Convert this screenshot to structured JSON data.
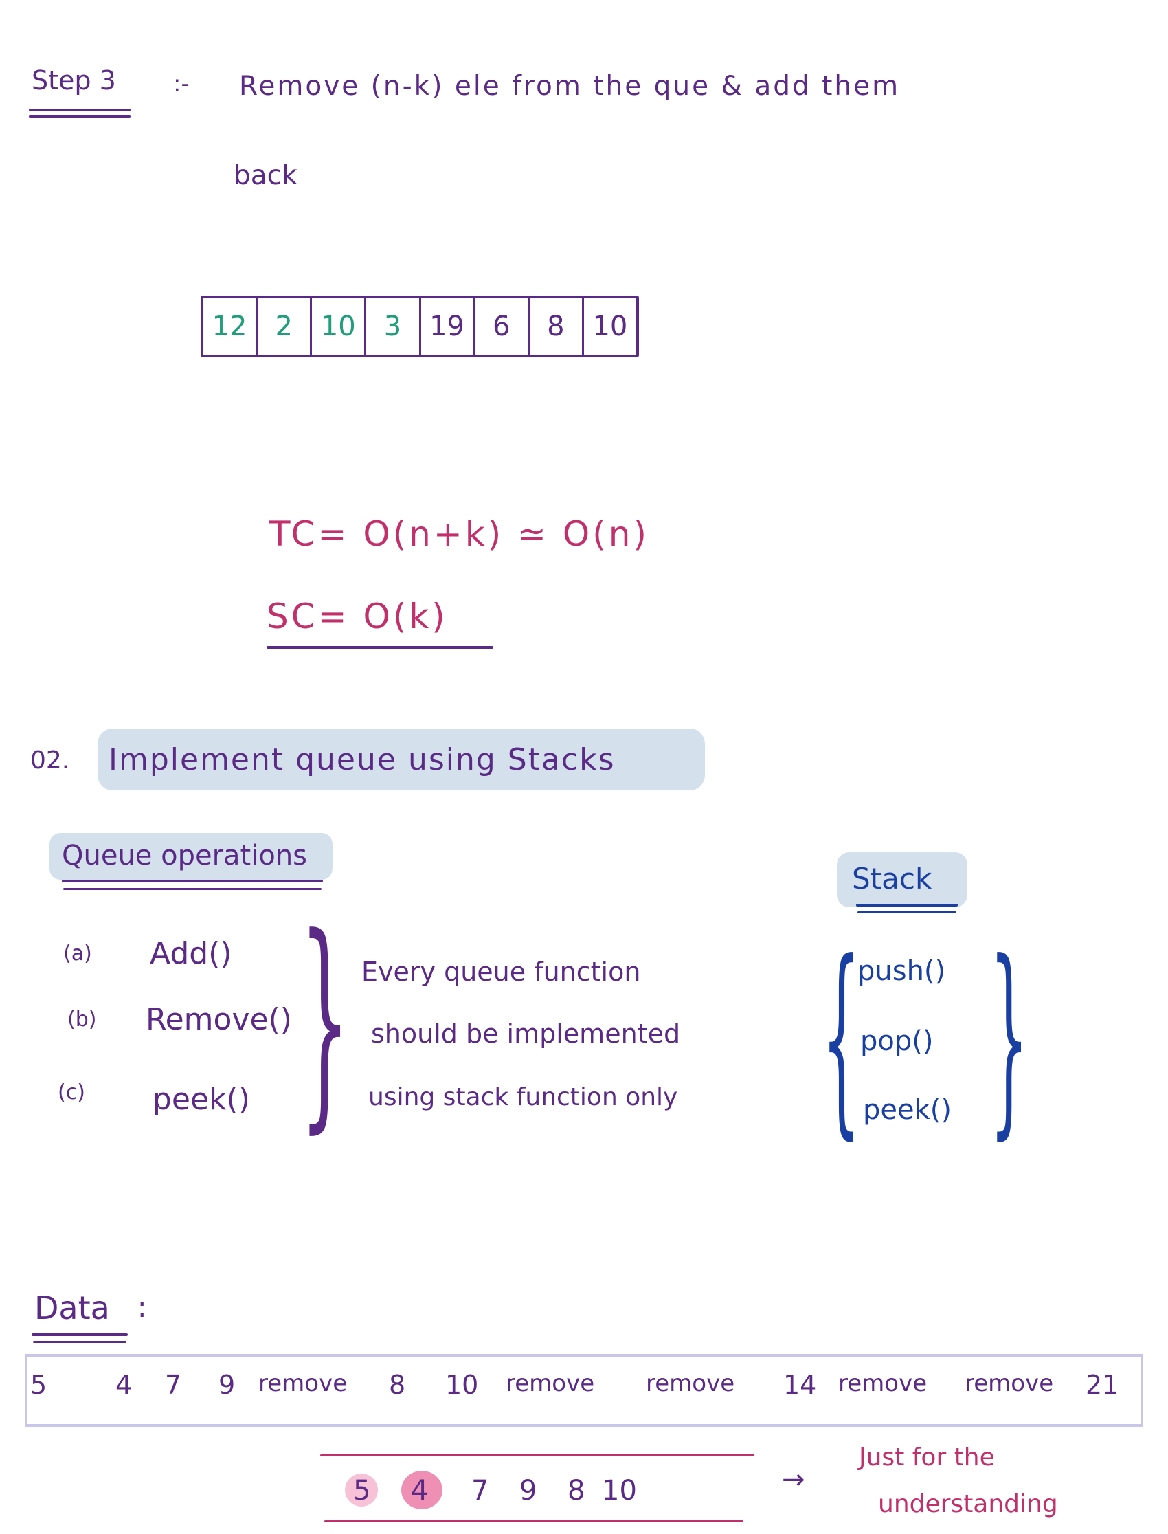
{
  "step3": {
    "label": "Step 3",
    "sep": ":-",
    "line1": "Remove (n-k) ele from the que & add them",
    "line2": "back"
  },
  "array": {
    "cells": [
      {
        "value": "12",
        "color": "#1f9e7a"
      },
      {
        "value": "2",
        "color": "#1f9e7a"
      },
      {
        "value": "10",
        "color": "#1f9e7a"
      },
      {
        "value": "3",
        "color": "#1f9e7a"
      },
      {
        "value": "19",
        "color": "#5b2a86"
      },
      {
        "value": "6",
        "color": "#5b2a86"
      },
      {
        "value": "8",
        "color": "#5b2a86"
      },
      {
        "value": "10",
        "color": "#5b2a86"
      }
    ]
  },
  "complexity": {
    "tc": "TC= O(n+k) ≃ O(n)",
    "sc": "SC= O(k)"
  },
  "question": {
    "number": "02.",
    "title": "Implement queue using Stacks"
  },
  "queue_ops": {
    "heading": "Queue operations",
    "items": [
      {
        "marker": "(a)",
        "name": "Add()"
      },
      {
        "marker": "(b)",
        "name": "Remove()"
      },
      {
        "marker": "(c)",
        "name": "peek()"
      }
    ],
    "note": [
      "Every queue function",
      "should be implemented",
      "using stack function only"
    ]
  },
  "stack": {
    "heading": "Stack",
    "items": [
      "push()",
      "pop()",
      "peek()"
    ]
  },
  "data": {
    "label": "Data",
    "colon": ":",
    "sequence": [
      "5",
      "4",
      "7",
      "9",
      "remove",
      "8",
      "10",
      "remove",
      "remove",
      "14",
      "remove",
      "remove",
      "21"
    ],
    "result": [
      "5",
      "4",
      "7",
      "9",
      "8",
      "10"
    ],
    "arrow": "→",
    "note": [
      "Just for the",
      "understanding"
    ]
  },
  "colors": {
    "purple": "#5b2a86",
    "pink": "#c2306b",
    "blue": "#1a3fa3",
    "green": "#1f9e7a",
    "highlight": "#d4e1ec",
    "strip_border": "#c9c6ea",
    "circle_pink": "#f2a9c4"
  }
}
